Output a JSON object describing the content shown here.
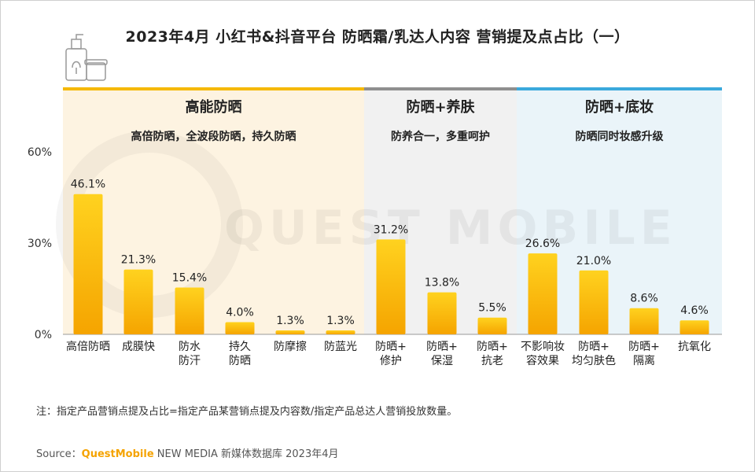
{
  "title": "2023年4月 小红书&抖音平台 防晒霜/乳达人内容 营销提及点占比（一）",
  "note": "注：指定产品营销点提及占比=指定产品某营销点提及内容数/指定产品总达人营销投放数量。",
  "source": {
    "prefix": "Source：",
    "brand": "QuestMobile",
    "rest": " NEW MEDIA 新媒体数据库 2023年4月"
  },
  "watermark": "QUEST MOBILE",
  "colors": {
    "bar_top": "#ffd21f",
    "bar_bottom": "#f5a400",
    "group1_bg": "#fdf3e1",
    "group1_line": "#f5b800",
    "group2_bg": "#f1f1f1",
    "group2_line": "#8f8f8f",
    "group3_bg": "#eaf4f9",
    "group3_line": "#3aa9dc"
  },
  "chart_data": {
    "type": "bar",
    "ylim": [
      0,
      60
    ],
    "yticks": [
      "0%",
      "30%",
      "60%"
    ],
    "unit": "%",
    "groups": [
      {
        "name": "高能防晒",
        "subtitle": "高倍防晒，全波段防晒，持久防晒",
        "color_key": "group1",
        "categories": [
          [
            "高倍防晒"
          ],
          [
            "成膜快"
          ],
          [
            "防水",
            "防汗"
          ],
          [
            "持久",
            "防晒"
          ],
          [
            "防摩擦"
          ],
          [
            "防蓝光"
          ]
        ],
        "values": [
          46.1,
          21.3,
          15.4,
          4.0,
          1.3,
          1.3
        ]
      },
      {
        "name": "防晒+养肤",
        "subtitle": "防养合一，多重呵护",
        "color_key": "group2",
        "categories": [
          [
            "防晒+",
            "修护"
          ],
          [
            "防晒+",
            "保湿"
          ],
          [
            "防晒+",
            "抗老"
          ]
        ],
        "values": [
          31.2,
          13.8,
          5.5
        ]
      },
      {
        "name": "防晒+底妆",
        "subtitle": "防晒同时妆感升级",
        "color_key": "group3",
        "categories": [
          [
            "不影响妆",
            "容效果"
          ],
          [
            "防晒+",
            "均匀肤色"
          ],
          [
            "防晒+",
            "隔离"
          ],
          [
            "抗氧化"
          ]
        ],
        "values": [
          26.6,
          21.0,
          8.6,
          4.6
        ]
      }
    ]
  }
}
